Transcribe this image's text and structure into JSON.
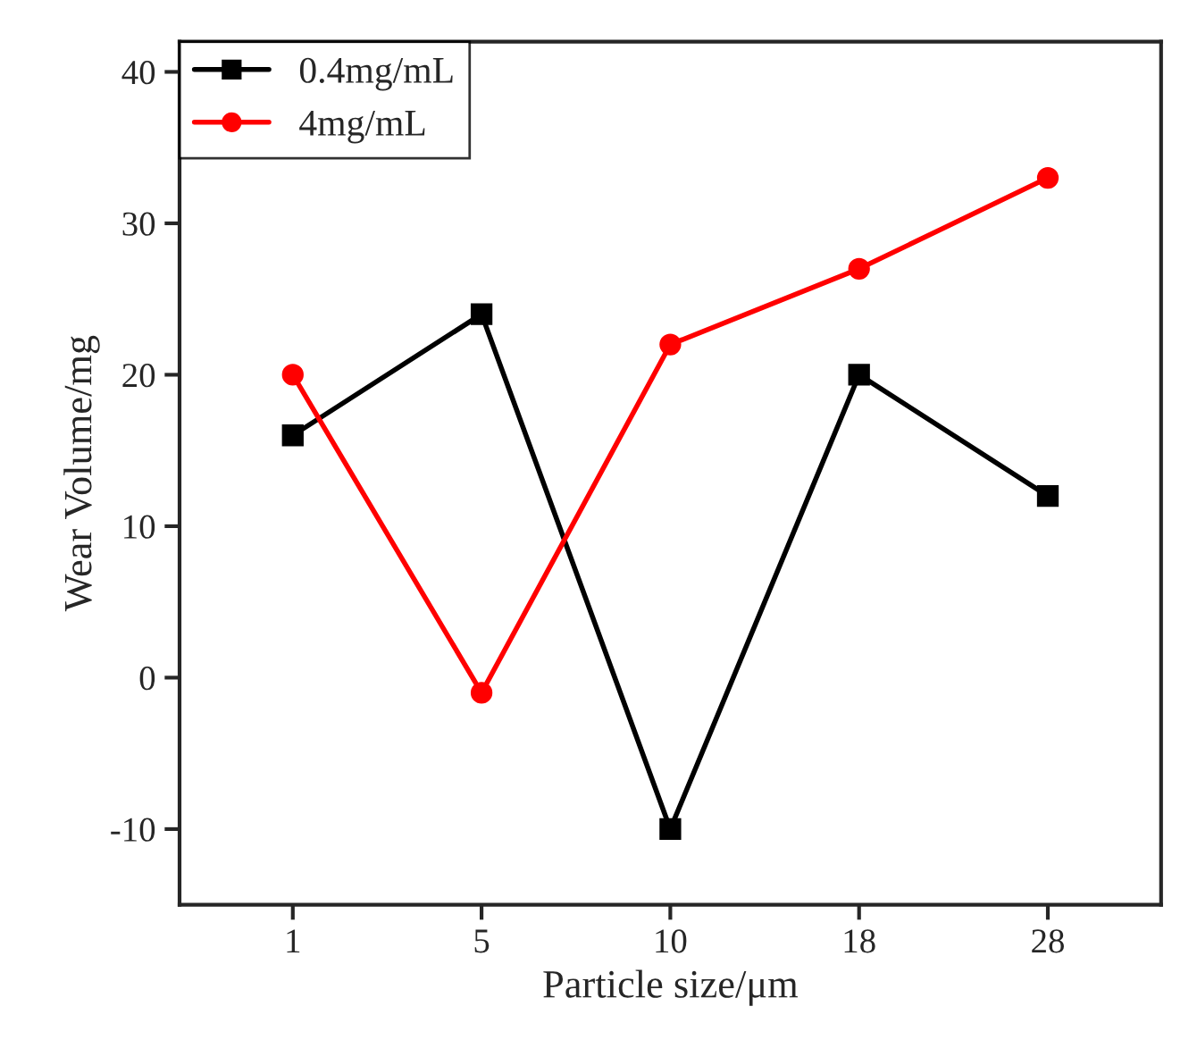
{
  "chart_data": {
    "type": "line",
    "xlabel": "Particle size/μm",
    "ylabel": "Wear Volume/mg",
    "categories": [
      "1",
      "5",
      "10",
      "18",
      "28"
    ],
    "series": [
      {
        "name": "0.4mg/mL",
        "color": "#000000",
        "marker": "square",
        "values": [
          16,
          24,
          -10,
          20,
          12
        ]
      },
      {
        "name": "4mg/mL",
        "color": "#ff0000",
        "marker": "circle",
        "values": [
          20,
          -1,
          22,
          27,
          33
        ]
      }
    ],
    "ylim": [
      -15,
      42
    ],
    "yticks": [
      -10,
      0,
      10,
      20,
      30,
      40
    ],
    "grid": false,
    "legend": "top left",
    "line_style": "solid"
  }
}
